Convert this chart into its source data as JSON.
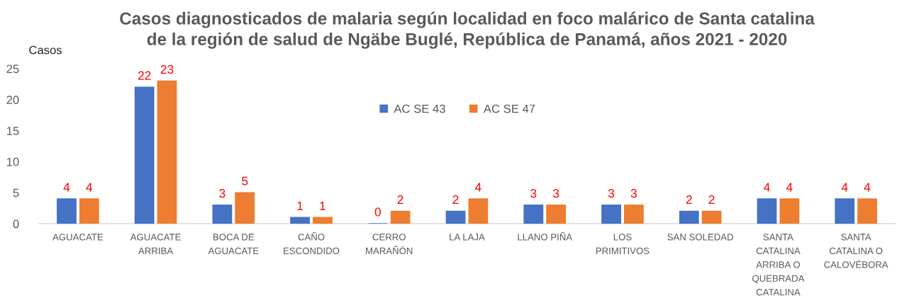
{
  "chart_data": {
    "type": "bar",
    "title": "Casos diagnosticados de malaria según localidad en foco malárico de Santa catalina\nde la región de salud de Ngäbe Buglé, República de Panamá, años 2021 - 2020",
    "ylabel": "Casos",
    "categories": [
      "AGUACATE",
      "AGUACATE\nARRIBA",
      "BOCA DE\nAGUACATE",
      "CAÑO\nESCONDIDO",
      "CERRO\nMARAÑÓN",
      "LA LAJA",
      "LLANO PIÑA",
      "LOS\nPRIMITIVOS",
      "SAN SOLEDAD",
      "SANTA\nCATALINA\nARRIBA O\nQUEBRADA\nCATALINA",
      "SANTA\nCATALINA O\nCALOVÉBORA"
    ],
    "series": [
      {
        "name": "AC SE 43",
        "color": "#4472c4",
        "values": [
          4,
          22,
          3,
          1,
          0,
          2,
          3,
          3,
          2,
          4,
          4
        ]
      },
      {
        "name": "AC SE 47",
        "color": "#ed7d31",
        "values": [
          4,
          23,
          5,
          1,
          2,
          4,
          3,
          3,
          2,
          4,
          4
        ]
      }
    ],
    "ylim": [
      0,
      25
    ],
    "yticks": [
      0,
      5,
      10,
      15,
      20,
      25
    ],
    "grid": false,
    "legend": "top",
    "data_labels": true
  }
}
